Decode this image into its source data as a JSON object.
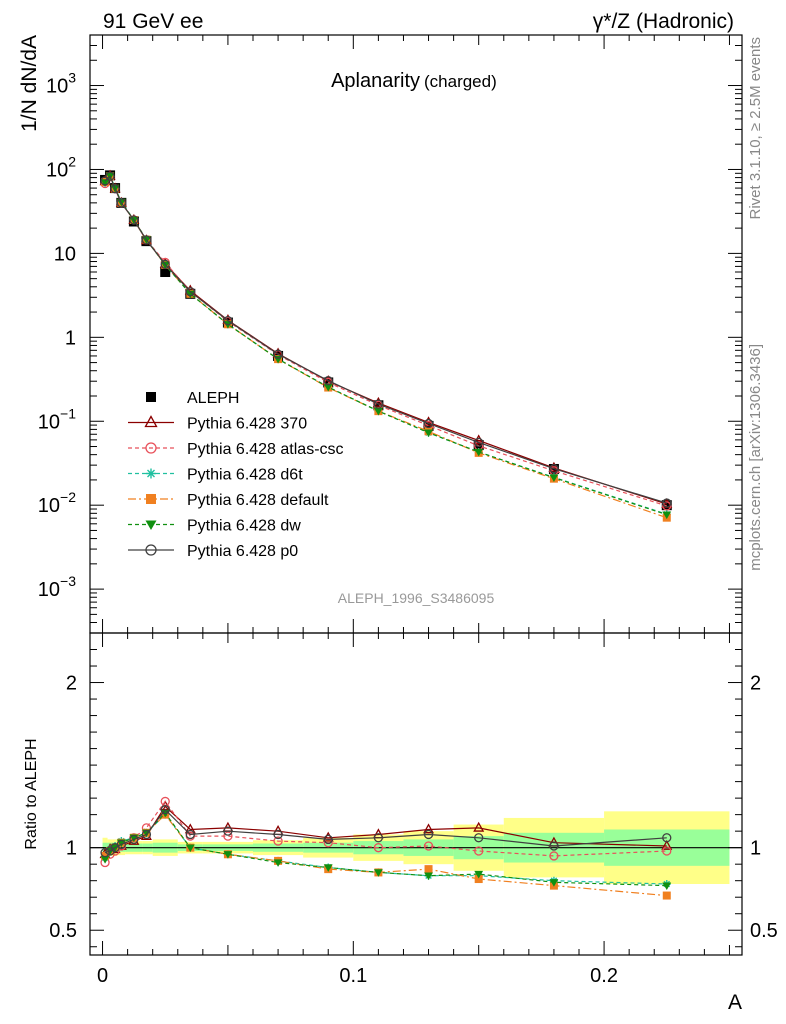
{
  "header": {
    "left": "91 GeV ee",
    "right": "γ*/Z (Hadronic)"
  },
  "side_labels": {
    "top": "Rivet 3.1.10, ≥ 2.5M events",
    "bottom": "mcplots.cern.ch [arXiv:1306.3436]"
  },
  "watermark": "ALEPH_1996_S3486095",
  "chart_data": [
    {
      "type": "scatter",
      "title": "Aplanarity",
      "subtitle": "(charged)",
      "ylabel": "1/N dN/dA",
      "xlabel": "A",
      "yscale": "log",
      "xlim": [
        -0.005,
        0.255
      ],
      "ylim": [
        0.0003,
        4000
      ],
      "yticks": [
        {
          "value": 0.001,
          "base": "10",
          "exp": "−3"
        },
        {
          "value": 0.01,
          "base": "10",
          "exp": "−2"
        },
        {
          "value": 0.1,
          "base": "10",
          "exp": "−1"
        },
        {
          "value": 1,
          "base": "1",
          "exp": ""
        },
        {
          "value": 10,
          "base": "10",
          "exp": ""
        },
        {
          "value": 100,
          "base": "10",
          "exp": "2"
        },
        {
          "value": 1000,
          "base": "10",
          "exp": "3"
        }
      ],
      "legend_position": "bottom-left",
      "x": [
        0.001,
        0.003,
        0.005,
        0.0075,
        0.0125,
        0.0175,
        0.025,
        0.035,
        0.05,
        0.07,
        0.09,
        0.11,
        0.13,
        0.15,
        0.18,
        0.225
      ],
      "series": [
        {
          "name": "ALEPH",
          "color": "#000000",
          "marker": "square-filled",
          "dash": "",
          "reference": true,
          "values": [
            75,
            85,
            60,
            40,
            24,
            14,
            6.0,
            3.3,
            1.5,
            0.6,
            0.29,
            0.155,
            0.088,
            0.052,
            0.027,
            0.01
          ]
        },
        {
          "name": "Pythia 6.428 370",
          "color": "#8b0000",
          "marker": "triangle-open",
          "dash": "",
          "values": [
            72,
            84,
            59,
            40,
            25,
            14.3,
            7.5,
            3.6,
            1.6,
            0.64,
            0.3,
            0.165,
            0.097,
            0.059,
            0.0278,
            0.0103
          ]
        },
        {
          "name": "Pythia 6.428 atlas-csc",
          "color": "#e8505a",
          "marker": "circle-open",
          "dash": "4,3",
          "values": [
            68,
            82,
            59,
            40,
            25,
            14.5,
            7.8,
            3.5,
            1.55,
            0.62,
            0.29,
            0.155,
            0.089,
            0.051,
            0.0257,
            0.0098
          ]
        },
        {
          "name": "Pythia 6.428 d6t",
          "color": "#20c0a0",
          "marker": "star",
          "dash": "4,3",
          "values": [
            70,
            84,
            60,
            41,
            25,
            14.6,
            7.3,
            3.3,
            1.43,
            0.55,
            0.255,
            0.132,
            0.073,
            0.043,
            0.0215,
            0.0078
          ]
        },
        {
          "name": "Pythia 6.428 default",
          "color": "#f08020",
          "marker": "square-filled",
          "dash": "8,3,2,3",
          "values": [
            71,
            83,
            59,
            40,
            25,
            14.6,
            7.3,
            3.3,
            1.43,
            0.55,
            0.252,
            0.132,
            0.076,
            0.042,
            0.0207,
            0.0071
          ]
        },
        {
          "name": "Pythia 6.428 dw",
          "color": "#109010",
          "marker": "triangle-down-filled",
          "dash": "4,3",
          "values": [
            70,
            84,
            60,
            41,
            25,
            14.6,
            7.3,
            3.3,
            1.43,
            0.55,
            0.255,
            0.132,
            0.073,
            0.043,
            0.0213,
            0.0077
          ]
        },
        {
          "name": "Pythia 6.428 p0",
          "color": "#404040",
          "marker": "circle-open",
          "dash": "",
          "values": [
            73,
            83,
            59,
            40,
            25,
            14.5,
            7.4,
            3.5,
            1.58,
            0.63,
            0.305,
            0.16,
            0.094,
            0.056,
            0.0272,
            0.0106
          ]
        }
      ]
    },
    {
      "type": "scatter",
      "ylabel": "Ratio to ALEPH",
      "xlabel": "A",
      "xlim": [
        -0.005,
        0.255
      ],
      "ylim": [
        0.35,
        2.3
      ],
      "yticks": [
        0.5,
        1,
        2
      ],
      "ytick_labels": [
        "0.5",
        "1",
        "2"
      ],
      "xticks": [
        0,
        0.1,
        0.2
      ],
      "xtick_labels": [
        "0",
        "0.1",
        "0.2"
      ],
      "reference_line": 1,
      "bands": {
        "edges": [
          0,
          0.002,
          0.004,
          0.006,
          0.009,
          0.016,
          0.02,
          0.03,
          0.04,
          0.06,
          0.08,
          0.1,
          0.12,
          0.14,
          0.16,
          0.2,
          0.25
        ],
        "inner": [
          0.03,
          0.03,
          0.03,
          0.025,
          0.025,
          0.025,
          0.03,
          0.02,
          0.02,
          0.025,
          0.03,
          0.04,
          0.05,
          0.07,
          0.09,
          0.11
        ],
        "outer": [
          0.06,
          0.05,
          0.05,
          0.045,
          0.04,
          0.04,
          0.05,
          0.035,
          0.035,
          0.045,
          0.06,
          0.08,
          0.1,
          0.14,
          0.18,
          0.22
        ],
        "inner_color": "#99ff99",
        "outer_color": "#ffff88"
      },
      "x": [
        0.001,
        0.003,
        0.005,
        0.0075,
        0.0125,
        0.0175,
        0.025,
        0.035,
        0.05,
        0.07,
        0.09,
        0.11,
        0.13,
        0.15,
        0.18,
        0.225
      ],
      "series": [
        {
          "name": "Pythia 6.428 370",
          "color": "#8b0000",
          "marker": "triangle-open",
          "dash": "",
          "values": [
            0.96,
            0.99,
            0.99,
            1.01,
            1.04,
            1.07,
            1.25,
            1.11,
            1.12,
            1.1,
            1.06,
            1.08,
            1.11,
            1.12,
            1.03,
            1.01
          ]
        },
        {
          "name": "Pythia 6.428 atlas-csc",
          "color": "#e8505a",
          "marker": "circle-open",
          "dash": "4,3",
          "values": [
            0.91,
            0.96,
            0.98,
            1.01,
            1.06,
            1.12,
            1.28,
            1.07,
            1.07,
            1.04,
            1.03,
            1.0,
            1.01,
            0.98,
            0.95,
            0.98
          ]
        },
        {
          "name": "Pythia 6.428 d6t",
          "color": "#20c0a0",
          "marker": "star",
          "dash": "4,3",
          "values": [
            0.94,
            0.99,
            1.01,
            1.04,
            1.06,
            1.09,
            1.2,
            1.0,
            0.96,
            0.92,
            0.88,
            0.85,
            0.83,
            0.83,
            0.8,
            0.78
          ]
        },
        {
          "name": "Pythia 6.428 default",
          "color": "#f08020",
          "marker": "square-filled",
          "dash": "8,3,2,3",
          "values": [
            0.95,
            0.98,
            1.0,
            1.03,
            1.06,
            1.09,
            1.2,
            1.0,
            0.96,
            0.92,
            0.87,
            0.85,
            0.87,
            0.81,
            0.77,
            0.71
          ]
        },
        {
          "name": "Pythia 6.428 dw",
          "color": "#109010",
          "marker": "triangle-down-filled",
          "dash": "4,3",
          "values": [
            0.93,
            0.98,
            1.0,
            1.03,
            1.06,
            1.09,
            1.21,
            1.0,
            0.96,
            0.91,
            0.88,
            0.85,
            0.83,
            0.84,
            0.79,
            0.77
          ]
        },
        {
          "name": "Pythia 6.428 p0",
          "color": "#404040",
          "marker": "circle-open",
          "dash": "",
          "values": [
            0.97,
            0.98,
            1.0,
            1.02,
            1.05,
            1.08,
            1.23,
            1.08,
            1.1,
            1.08,
            1.05,
            1.06,
            1.08,
            1.06,
            1.01,
            1.06
          ]
        }
      ]
    }
  ]
}
